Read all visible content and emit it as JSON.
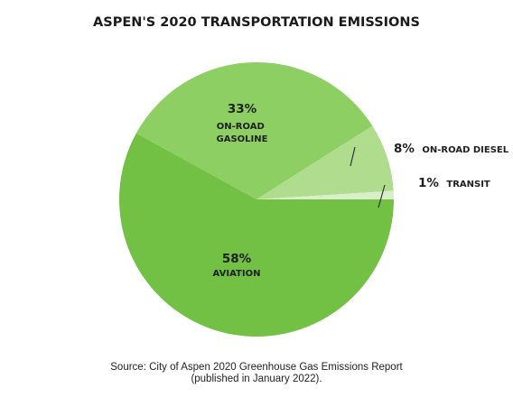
{
  "chart_data": {
    "type": "pie",
    "title": "ASPEN'S 2020 TRANSPORTATION EMISSIONS",
    "slices": [
      {
        "name": "ON-ROAD GASOLINE",
        "value": 33,
        "value_label": "33%",
        "color": "#8dcf62"
      },
      {
        "name": "ON-ROAD DIESEL",
        "value": 8,
        "value_label": "8%",
        "color": "#b0dc8e"
      },
      {
        "name": "TRANSIT",
        "value": 1,
        "value_label": "1%",
        "color": "#d8eec8"
      },
      {
        "name": "AVIATION",
        "value": 58,
        "value_label": "58%",
        "color": "#72c044"
      }
    ]
  },
  "source": {
    "line1": "Source: City of Aspen 2020 Greenhouse Gas Emissions Report",
    "line2": "(published in January 2022)."
  }
}
